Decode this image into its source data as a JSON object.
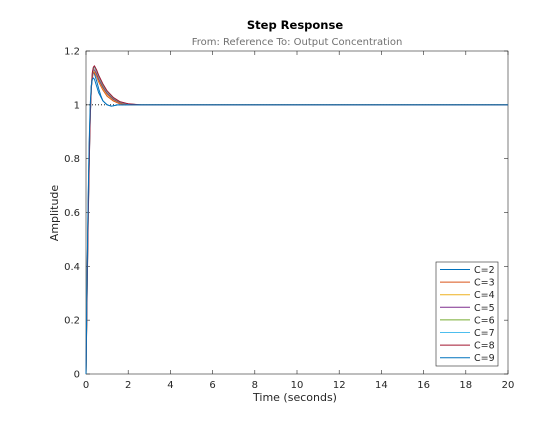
{
  "chart_data": {
    "type": "line",
    "title": "Step Response",
    "subtitle": "From: Reference  To: Output Concentration",
    "xlabel": "Time (seconds)",
    "ylabel": "Amplitude",
    "xlim": [
      0,
      20
    ],
    "ylim": [
      0,
      1.2
    ],
    "xticks": [
      "0",
      "2",
      "4",
      "6",
      "8",
      "10",
      "12",
      "14",
      "16",
      "18",
      "20"
    ],
    "yticks": [
      "0",
      "0.2",
      "0.4",
      "0.6",
      "0.8",
      "1",
      "1.2"
    ],
    "reference_line": 1,
    "grid": false,
    "legend_position": "bottom-right",
    "series": [
      {
        "name": "C=2",
        "color": "#0072BD",
        "x": [
          0,
          0.05,
          0.1,
          0.15,
          0.2,
          0.25,
          0.3,
          0.35,
          0.4,
          0.5,
          0.6,
          0.7,
          0.8,
          1.0,
          1.2,
          1.5,
          2.0,
          20
        ],
        "y": [
          0,
          0.35,
          0.62,
          0.84,
          0.98,
          1.07,
          1.11,
          1.12,
          1.115,
          1.09,
          1.06,
          1.035,
          1.015,
          1.0,
          0.995,
          1.0,
          1.0,
          1.0
        ]
      },
      {
        "name": "C=3",
        "color": "#D95319",
        "x": [
          0,
          0.05,
          0.1,
          0.15,
          0.2,
          0.25,
          0.3,
          0.35,
          0.4,
          0.5,
          0.6,
          0.8,
          1.0,
          1.3,
          1.6,
          2.0,
          2.8,
          20
        ],
        "y": [
          0,
          0.33,
          0.6,
          0.82,
          0.97,
          1.06,
          1.1,
          1.12,
          1.12,
          1.105,
          1.085,
          1.055,
          1.032,
          1.014,
          1.004,
          1.0,
          1.0,
          1.0
        ]
      },
      {
        "name": "C=4",
        "color": "#EDB120",
        "x": [
          0,
          0.05,
          0.1,
          0.15,
          0.2,
          0.25,
          0.3,
          0.35,
          0.4,
          0.5,
          0.6,
          0.8,
          1.0,
          1.3,
          1.6,
          2.0,
          2.6,
          20
        ],
        "y": [
          0,
          0.32,
          0.59,
          0.81,
          0.97,
          1.06,
          1.11,
          1.125,
          1.125,
          1.11,
          1.09,
          1.06,
          1.038,
          1.018,
          1.007,
          1.002,
          1.0,
          1.0
        ]
      },
      {
        "name": "C=5",
        "color": "#7E2F8E",
        "x": [
          0,
          0.05,
          0.1,
          0.15,
          0.2,
          0.25,
          0.3,
          0.35,
          0.4,
          0.5,
          0.6,
          0.8,
          1.0,
          1.3,
          1.6,
          2.0,
          2.6,
          20
        ],
        "y": [
          0,
          0.31,
          0.58,
          0.8,
          0.96,
          1.06,
          1.11,
          1.13,
          1.13,
          1.115,
          1.095,
          1.065,
          1.042,
          1.02,
          1.008,
          1.002,
          1.0,
          1.0
        ]
      },
      {
        "name": "C=6",
        "color": "#77AC30",
        "x": [
          0,
          0.05,
          0.1,
          0.15,
          0.2,
          0.25,
          0.3,
          0.35,
          0.4,
          0.5,
          0.6,
          0.8,
          1.0,
          1.3,
          1.6,
          2.0,
          2.6,
          20
        ],
        "y": [
          0,
          0.3,
          0.57,
          0.79,
          0.96,
          1.06,
          1.115,
          1.135,
          1.14,
          1.125,
          1.105,
          1.072,
          1.048,
          1.024,
          1.01,
          1.003,
          1.0,
          1.0
        ]
      },
      {
        "name": "C=7",
        "color": "#4DBEEE",
        "x": [
          0,
          0.05,
          0.1,
          0.15,
          0.2,
          0.25,
          0.3,
          0.35,
          0.4,
          0.5,
          0.6,
          0.8,
          1.0,
          1.3,
          1.6,
          2.0,
          2.6,
          20
        ],
        "y": [
          0,
          0.29,
          0.56,
          0.78,
          0.95,
          1.06,
          1.115,
          1.138,
          1.142,
          1.128,
          1.108,
          1.076,
          1.05,
          1.026,
          1.011,
          1.003,
          1.0,
          1.0
        ]
      },
      {
        "name": "C=8",
        "color": "#A2142F",
        "x": [
          0,
          0.05,
          0.1,
          0.15,
          0.2,
          0.25,
          0.3,
          0.35,
          0.4,
          0.5,
          0.6,
          0.8,
          1.0,
          1.3,
          1.6,
          2.0,
          2.6,
          5.0,
          20
        ],
        "y": [
          0,
          0.28,
          0.55,
          0.77,
          0.95,
          1.06,
          1.12,
          1.14,
          1.145,
          1.13,
          1.11,
          1.078,
          1.052,
          1.027,
          1.012,
          1.004,
          1.0,
          1.0,
          1.0
        ]
      },
      {
        "name": "C=9",
        "color": "#0072BD",
        "x": [
          0,
          0.05,
          0.1,
          0.15,
          0.2,
          0.25,
          0.3,
          0.35,
          0.4,
          0.5,
          0.6,
          0.8,
          1.0,
          1.2,
          1.5,
          20
        ],
        "y": [
          0,
          0.36,
          0.64,
          0.86,
          1.0,
          1.07,
          1.095,
          1.1,
          1.095,
          1.07,
          1.045,
          1.015,
          1.0,
          0.995,
          1.0,
          1.0
        ]
      }
    ]
  }
}
